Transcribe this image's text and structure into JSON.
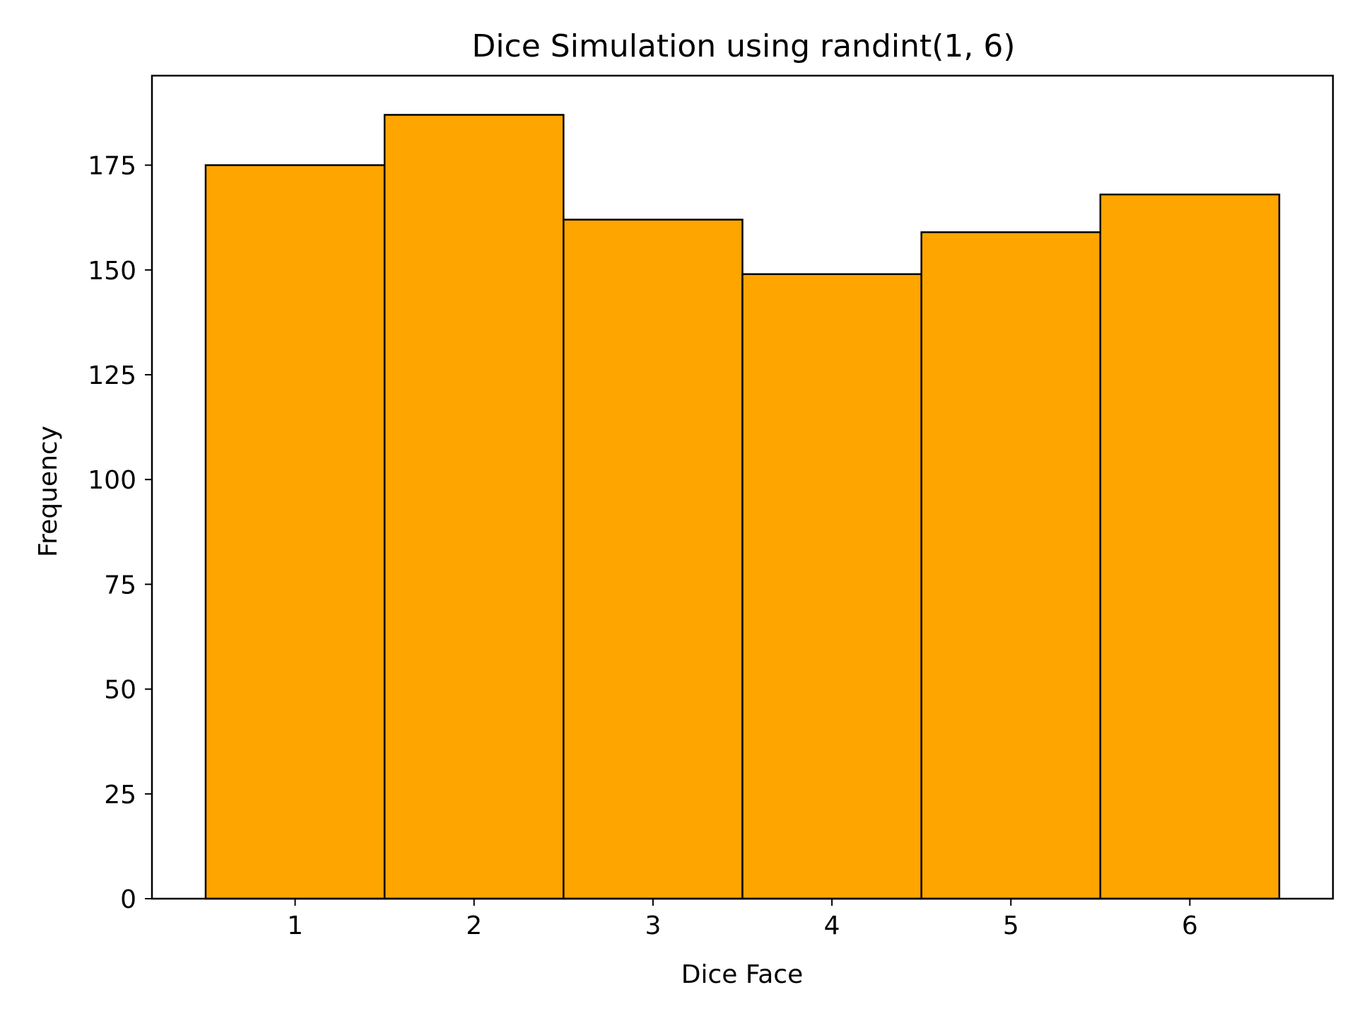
{
  "chart_data": {
    "type": "bar",
    "title": "Dice Simulation using randint(1, 6)",
    "xlabel": "Dice Face",
    "ylabel": "Frequency",
    "categories": [
      "1",
      "2",
      "3",
      "4",
      "5",
      "6"
    ],
    "values": [
      175,
      187,
      162,
      149,
      159,
      168
    ],
    "x_ticks": [
      "1",
      "2",
      "3",
      "4",
      "5",
      "6"
    ],
    "y_ticks": [
      0,
      25,
      50,
      75,
      100,
      125,
      150,
      175
    ],
    "ylim": [
      0,
      196.35
    ],
    "xlim": [
      0.2,
      6.8
    ],
    "bar_color": "#FFA500",
    "edge_color": "#000000",
    "grid": false,
    "legend": "none"
  }
}
